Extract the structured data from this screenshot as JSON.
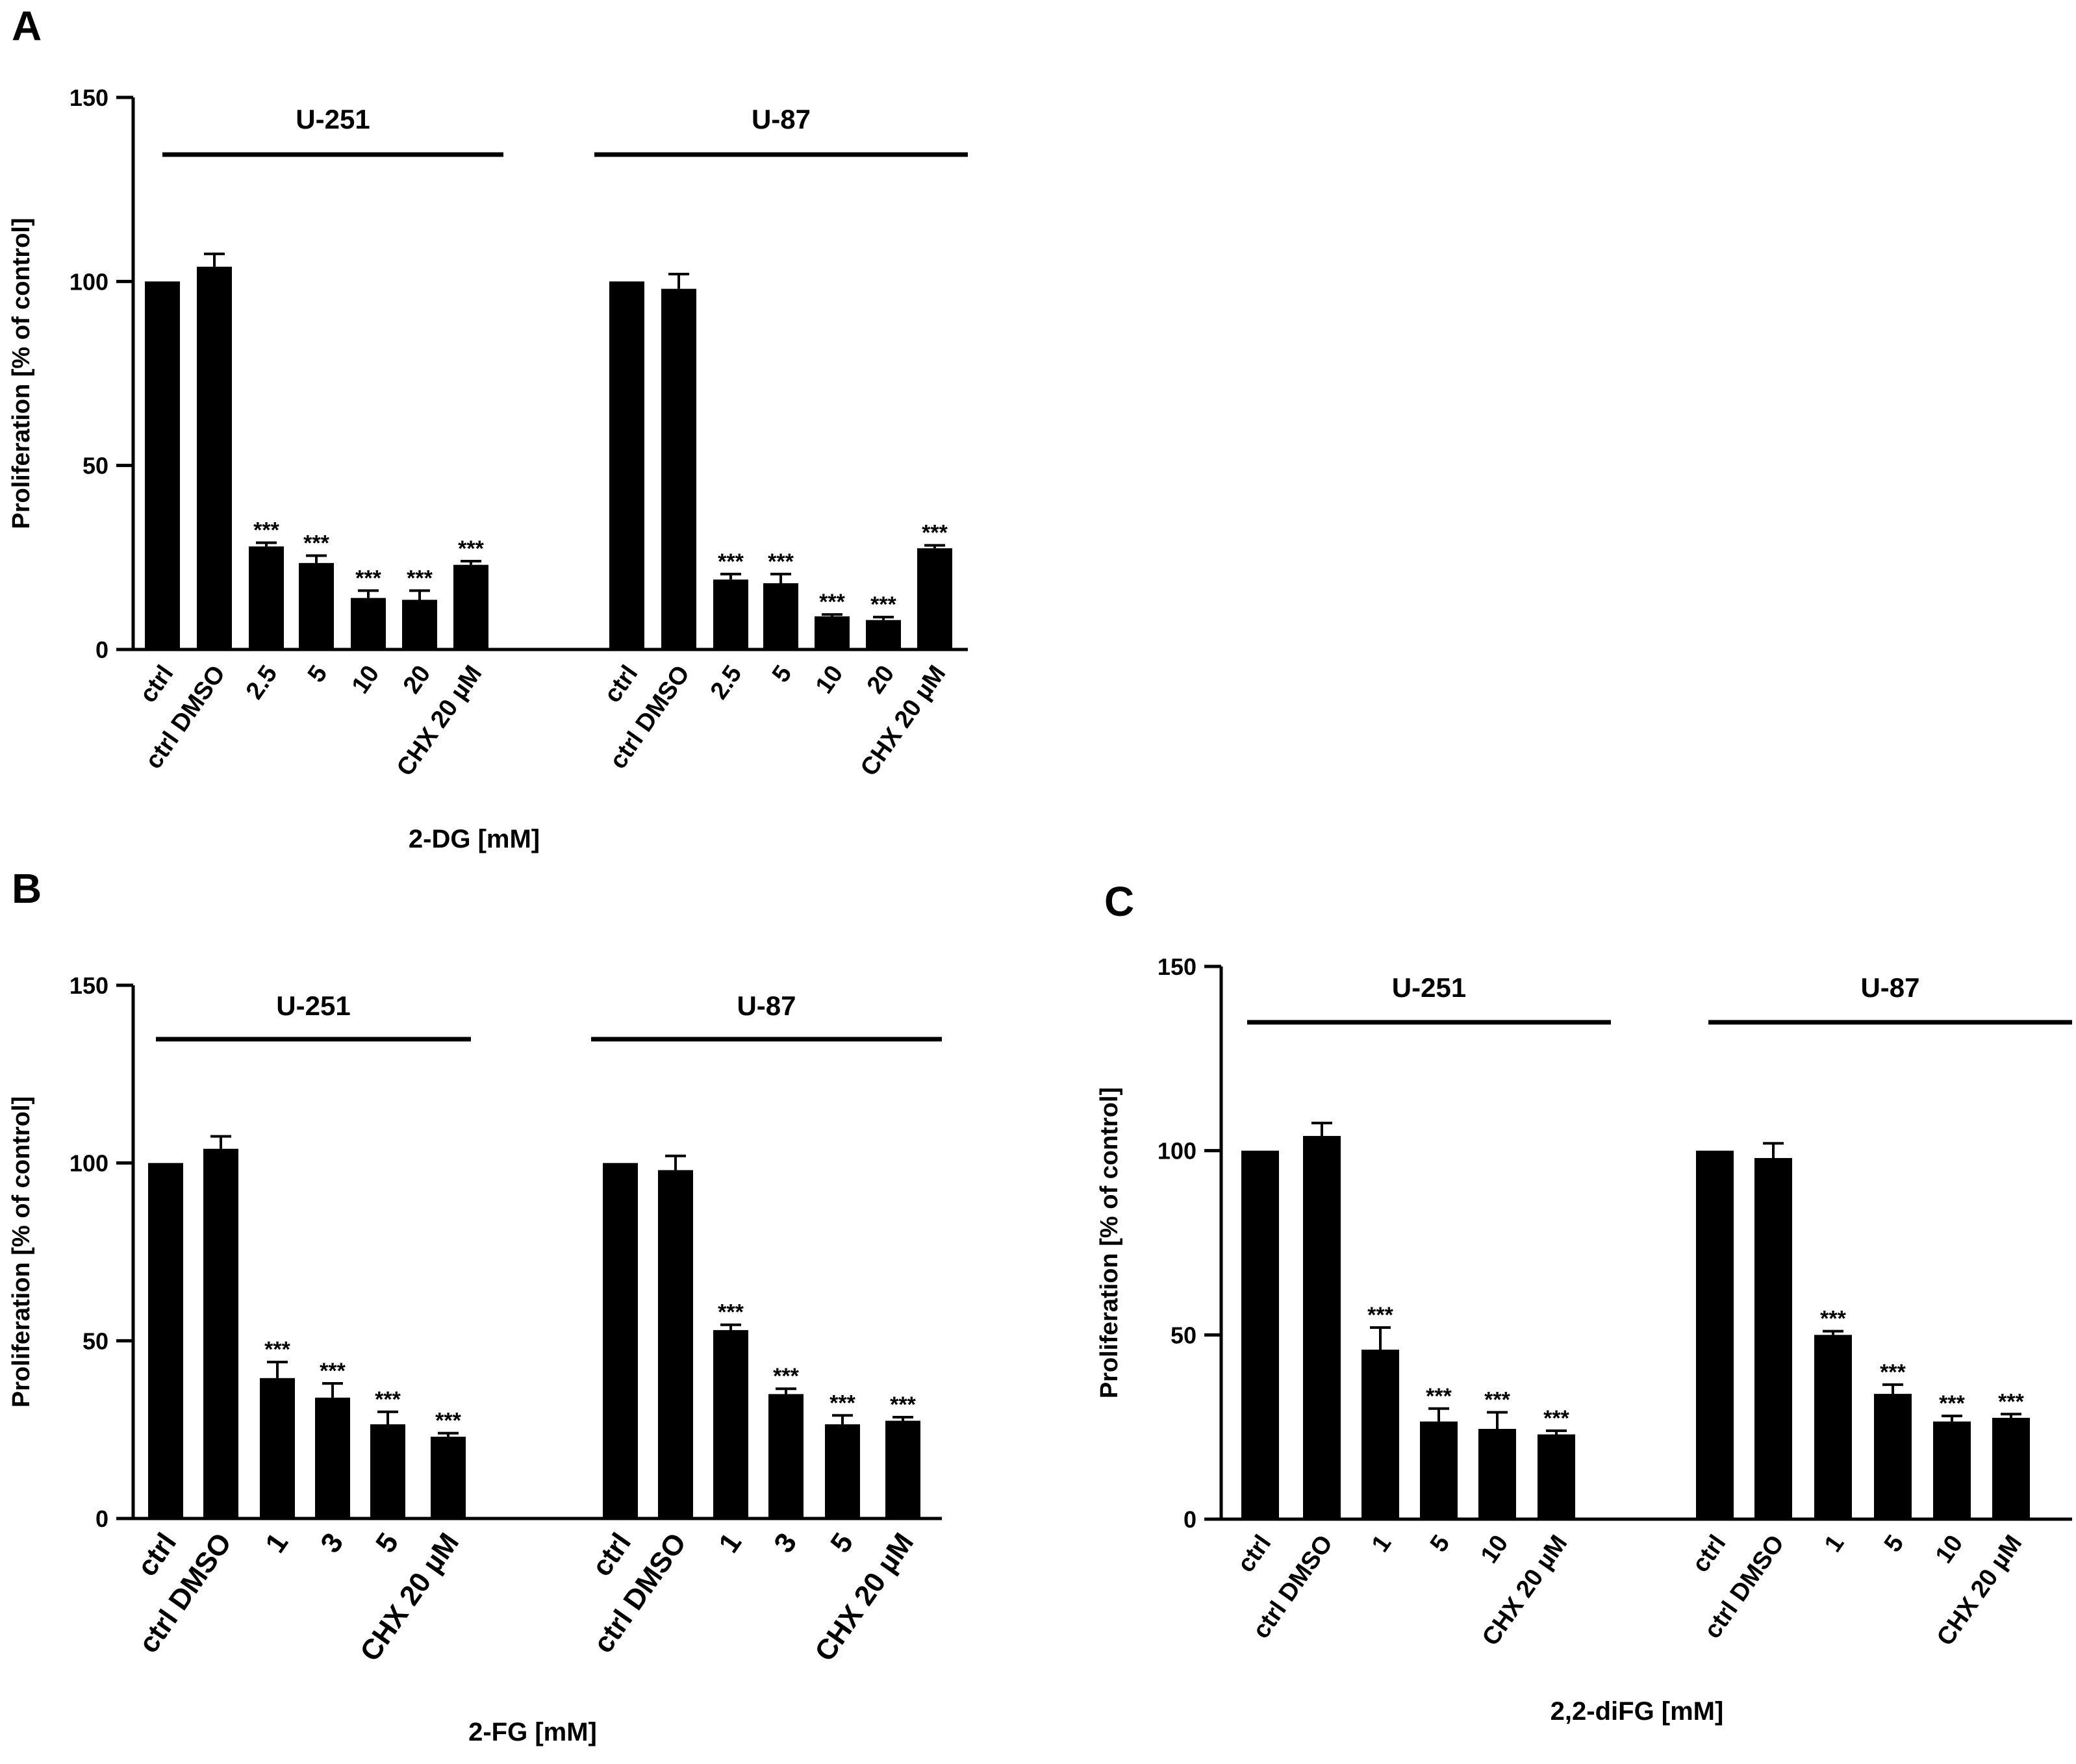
{
  "chart_data": [
    {
      "panel": "A",
      "type": "bar",
      "title": "",
      "xlabel": "2-DG [mM]",
      "ylabel": "Proliferation [% of control]",
      "ylim": [
        0,
        150
      ],
      "yticks": [
        0,
        50,
        100,
        150
      ],
      "groups": [
        {
          "name": "U-251",
          "categories": [
            "ctrl",
            "ctrl DMSO",
            "2.5",
            "5",
            "10",
            "20",
            "CHX 20 µM"
          ],
          "values": [
            100,
            104,
            28,
            23.5,
            14,
            13.5,
            23
          ],
          "errors": [
            0,
            3.5,
            1,
            2,
            2,
            2.5,
            1
          ],
          "significance": [
            "",
            "",
            "***",
            "***",
            "***",
            "***",
            "***"
          ]
        },
        {
          "name": "U-87",
          "categories": [
            "ctrl",
            "ctrl DMSO",
            "2.5",
            "5",
            "10",
            "20",
            "CHX 20 µM"
          ],
          "values": [
            100,
            98,
            19,
            18,
            9,
            8,
            27.5
          ],
          "errors": [
            0,
            4,
            1.5,
            2.5,
            0.5,
            0.8,
            0.8
          ],
          "significance": [
            "",
            "",
            "***",
            "***",
            "***",
            "***",
            "***"
          ]
        }
      ]
    },
    {
      "panel": "B",
      "type": "bar",
      "title": "",
      "xlabel": "2-FG [mM]",
      "ylabel": "Proliferation [% of control]",
      "ylim": [
        0,
        150
      ],
      "yticks": [
        0,
        50,
        100,
        150
      ],
      "groups": [
        {
          "name": "U-251",
          "categories": [
            "ctrl",
            "ctrl DMSO",
            "1",
            "3",
            "5",
            "CHX 20 µM"
          ],
          "values": [
            100,
            104,
            39.5,
            34,
            26.5,
            23
          ],
          "errors": [
            0,
            3.5,
            4.5,
            4,
            3.5,
            1
          ],
          "significance": [
            "",
            "",
            "***",
            "***",
            "***",
            "***"
          ]
        },
        {
          "name": "U-87",
          "categories": [
            "ctrl",
            "ctrl DMSO",
            "1",
            "3",
            "5",
            "CHX 20 µM"
          ],
          "values": [
            100,
            98,
            53,
            35,
            26.5,
            27.5
          ],
          "errors": [
            0,
            4,
            1.5,
            1.5,
            2.5,
            1
          ],
          "significance": [
            "",
            "",
            "***",
            "***",
            "***",
            "***"
          ]
        }
      ]
    },
    {
      "panel": "C",
      "type": "bar",
      "title": "",
      "xlabel": "2,2-diFG [mM]",
      "ylabel": "Proliferation [% of control]",
      "ylim": [
        0,
        150
      ],
      "yticks": [
        0,
        50,
        100,
        150
      ],
      "groups": [
        {
          "name": "U-251",
          "categories": [
            "ctrl",
            "ctrl DMSO",
            "1",
            "5",
            "10",
            "CHX 20 µM"
          ],
          "values": [
            100,
            104,
            46,
            26.5,
            24.5,
            23
          ],
          "errors": [
            0,
            3.5,
            6,
            3.5,
            4.5,
            1
          ],
          "significance": [
            "",
            "",
            "***",
            "***",
            "***",
            "***"
          ]
        },
        {
          "name": "U-87",
          "categories": [
            "ctrl",
            "ctrl DMSO",
            "1",
            "5",
            "10",
            "CHX 20 µM"
          ],
          "values": [
            100,
            98,
            50,
            34,
            26.5,
            27.5
          ],
          "errors": [
            0,
            4,
            1,
            2.5,
            1.5,
            1
          ],
          "significance": [
            "",
            "",
            "***",
            "***",
            "***",
            "***"
          ]
        }
      ]
    }
  ]
}
